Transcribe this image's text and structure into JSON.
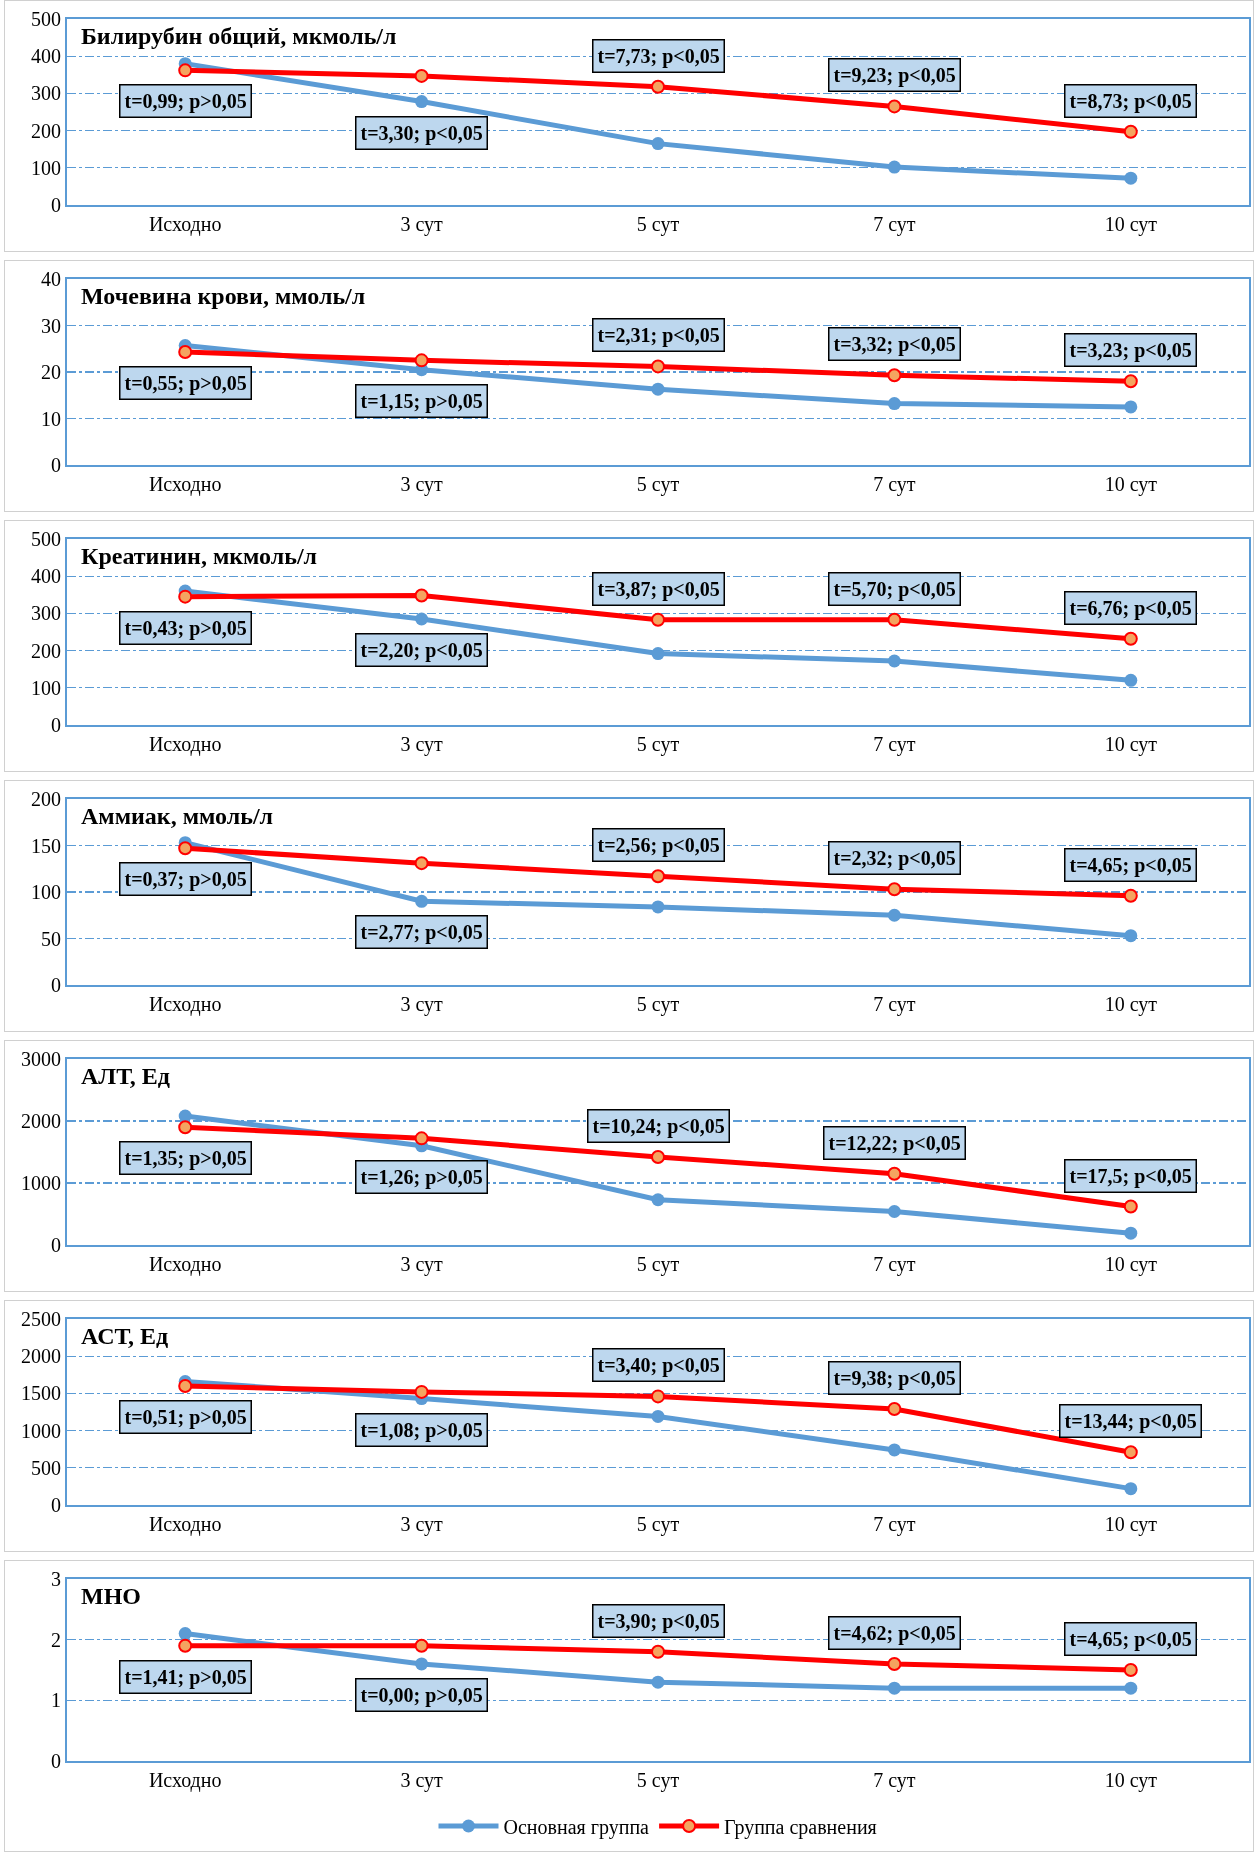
{
  "chart_data": [
    {
      "type": "line",
      "title": "Билирубин общий, мкмоль/л",
      "categories": [
        "Исходно",
        "3 сут",
        "5 сут",
        "7 сут",
        "10 сут"
      ],
      "ylim": [
        0,
        500
      ],
      "yticks": [
        0,
        100,
        200,
        300,
        400,
        500
      ],
      "grid": "y",
      "marker": "circle",
      "line_style": "solid",
      "series": [
        {
          "color": "#5b9bd5",
          "values": [
            380,
            278,
            165,
            102,
            72
          ]
        },
        {
          "color": "#ff0000",
          "values": [
            362,
            347,
            318,
            265,
            197
          ]
        }
      ],
      "annotations": [
        "t=0,99; p>0,05",
        "t=3,30; p<0,05",
        "t=7,73; p<0,05",
        "t=9,23; p<0,05",
        "t=8,73; p<0,05"
      ]
    },
    {
      "type": "line",
      "title": "Мочевина крови, ммоль/л",
      "categories": [
        "Исходно",
        "3 сут",
        "5 сут",
        "7 сут",
        "10 сут"
      ],
      "ylim": [
        0,
        40
      ],
      "yticks": [
        0,
        10,
        20,
        30,
        40
      ],
      "grid": "y",
      "marker": "circle",
      "line_style": "solid",
      "series": [
        {
          "color": "#5b9bd5",
          "values": [
            25.7,
            20.5,
            16.3,
            13.2,
            12.5
          ]
        },
        {
          "color": "#ff0000",
          "values": [
            24.3,
            22.5,
            21.2,
            19.3,
            18
          ]
        }
      ],
      "annotations": [
        "t=0,55; p>0,05",
        "t=1,15; p>0,05",
        "t=2,31; p<0,05",
        "t=3,32; p<0,05",
        "t=3,23; p<0,05"
      ]
    },
    {
      "type": "line",
      "title": "Креатинин, мкмоль/л",
      "categories": [
        "Исходно",
        "3 сут",
        "5 сут",
        "7 сут",
        "10 сут"
      ],
      "ylim": [
        0,
        500
      ],
      "yticks": [
        0,
        100,
        200,
        300,
        400,
        500
      ],
      "grid": "y",
      "marker": "circle",
      "line_style": "solid",
      "series": [
        {
          "color": "#5b9bd5",
          "values": [
            360,
            285,
            192,
            172,
            120
          ]
        },
        {
          "color": "#ff0000",
          "values": [
            345,
            348,
            283,
            283,
            232
          ]
        }
      ],
      "annotations": [
        "t=0,43; p>0,05",
        "t=2,20; p<0,05",
        "t=3,87; p<0,05",
        "t=5,70; p<0,05",
        "t=6,76; p<0,05"
      ]
    },
    {
      "type": "line",
      "title": "Аммиак, ммоль/л",
      "categories": [
        "Исходно",
        "3 сут",
        "5 сут",
        "7 сут",
        "10 сут"
      ],
      "ylim": [
        0,
        200
      ],
      "yticks": [
        0,
        50,
        100,
        150,
        200
      ],
      "grid": "y",
      "marker": "circle",
      "line_style": "solid",
      "series": [
        {
          "color": "#5b9bd5",
          "values": [
            153,
            90,
            84,
            75,
            53
          ]
        },
        {
          "color": "#ff0000",
          "values": [
            147,
            131,
            117,
            103,
            96
          ]
        }
      ],
      "annotations": [
        "t=0,37; p>0,05",
        "t=2,77; p<0,05",
        "t=2,56; p<0,05",
        "t=2,32; p<0,05",
        "t=4,65; p<0,05"
      ]
    },
    {
      "type": "line",
      "title": "АЛТ, Ед",
      "categories": [
        "Исходно",
        "3 сут",
        "5 сут",
        "7 сут",
        "10 сут"
      ],
      "ylim": [
        0,
        3000
      ],
      "yticks": [
        0,
        1000,
        2000,
        3000
      ],
      "grid": "y",
      "marker": "circle",
      "line_style": "solid",
      "series": [
        {
          "color": "#5b9bd5",
          "values": [
            2080,
            1600,
            730,
            540,
            190
          ]
        },
        {
          "color": "#ff0000",
          "values": [
            1900,
            1720,
            1420,
            1150,
            620
          ]
        }
      ],
      "annotations": [
        "t=1,35; p>0,05",
        "t=1,26; p>0,05",
        "t=10,24; p<0,05",
        "t=12,22; p<0,05",
        "t=17,5; p<0,05"
      ]
    },
    {
      "type": "line",
      "title": "АСТ, Ед",
      "categories": [
        "Исходно",
        "3 сут",
        "5 сут",
        "7 сут",
        "10 сут"
      ],
      "ylim": [
        0,
        2500
      ],
      "yticks": [
        0,
        500,
        1000,
        1500,
        2000,
        2500
      ],
      "grid": "y",
      "marker": "circle",
      "line_style": "solid",
      "series": [
        {
          "color": "#5b9bd5",
          "values": [
            1660,
            1430,
            1190,
            740,
            220
          ]
        },
        {
          "color": "#ff0000",
          "values": [
            1600,
            1520,
            1460,
            1290,
            710
          ]
        }
      ],
      "annotations": [
        "t=0,51; p>0,05",
        "t=1,08; p>0,05",
        "t=3,40; p<0,05",
        "t=9,38; p<0,05",
        "t=13,44; p<0,05"
      ]
    },
    {
      "type": "line",
      "title": "МНО",
      "categories": [
        "Исходно",
        "3 сут",
        "5 сут",
        "7 сут",
        "10 сут"
      ],
      "ylim": [
        0,
        3
      ],
      "yticks": [
        0,
        1,
        2,
        3
      ],
      "grid": "y",
      "marker": "circle",
      "line_style": "solid",
      "legend": "bottom",
      "series": [
        {
          "name": "Основная группа",
          "color": "#5b9bd5",
          "values": [
            2.1,
            1.6,
            1.3,
            1.2,
            1.2
          ]
        },
        {
          "name": "Группа сравнения",
          "color": "#ff0000",
          "values": [
            1.9,
            1.9,
            1.8,
            1.6,
            1.5
          ]
        }
      ],
      "annotations": [
        "t=1,41; p>0,05",
        "t=0,00; p>0,05",
        "t=3,90; p<0,05",
        "t=4,62; p<0,05",
        "t=4,65; p<0,05"
      ]
    }
  ]
}
